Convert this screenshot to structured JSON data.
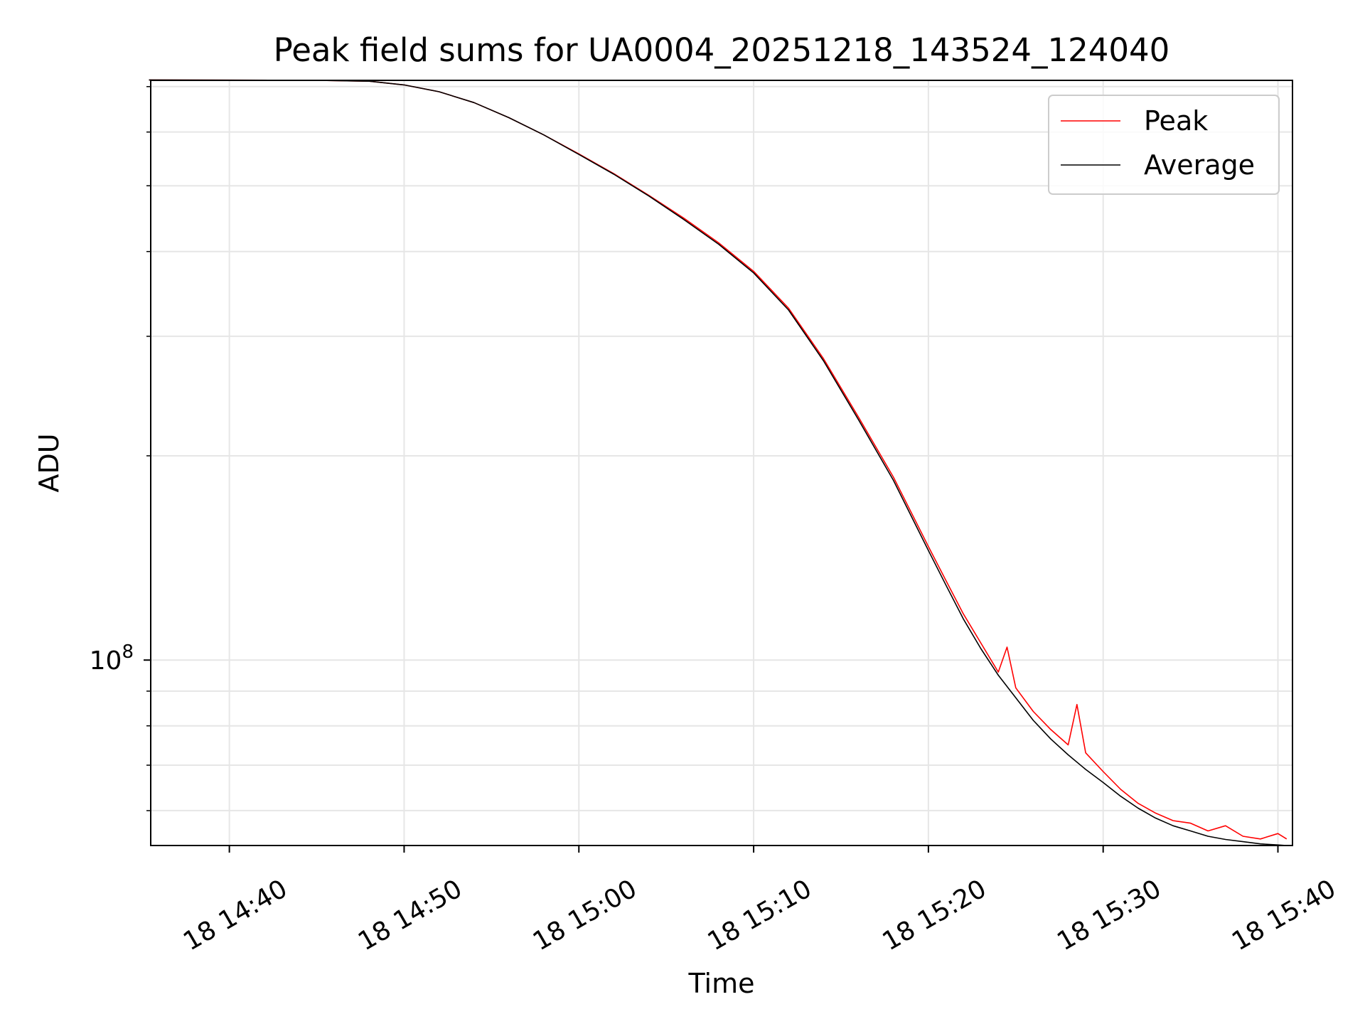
{
  "chart_data": {
    "type": "line",
    "title": "Peak field sums for UA0004_20251218_143524_124040",
    "xlabel": "Time",
    "ylabel": "ADU",
    "x_scale": "time",
    "y_scale": "log",
    "xlim": [
      "2025-12-18 14:35:30",
      "2025-12-18 15:40:50"
    ],
    "ylim": [
      53300000,
      715000000
    ],
    "x_ticks": [
      "18 14:40",
      "18 14:50",
      "18 15:00",
      "18 15:10",
      "18 15:20",
      "18 15:30",
      "18 15:40"
    ],
    "y_tick_label": {
      "base": "10",
      "exponent": "8"
    },
    "grid": true,
    "legend_position": "upper right",
    "series": [
      {
        "name": "Peak",
        "color": "#ff0000",
        "time": [
          "14:35:24",
          "14:45:00",
          "14:48:00",
          "14:50:00",
          "14:52:00",
          "14:54:00",
          "14:56:00",
          "14:58:00",
          "15:00:00",
          "15:02:00",
          "15:04:00",
          "15:06:00",
          "15:08:00",
          "15:10:00",
          "15:12:00",
          "15:14:00",
          "15:16:00",
          "15:18:00",
          "15:20:00",
          "15:21:00",
          "15:22:00",
          "15:23:00",
          "15:24:00",
          "15:24:30",
          "15:25:00",
          "15:26:00",
          "15:27:00",
          "15:28:00",
          "15:28:30",
          "15:29:00",
          "15:30:00",
          "15:31:00",
          "15:32:00",
          "15:33:00",
          "15:34:00",
          "15:35:00",
          "15:36:00",
          "15:37:00",
          "15:38:00",
          "15:39:00",
          "15:40:00",
          "15:40:30"
        ],
        "adu": [
          716000000,
          715000000,
          713000000,
          704000000,
          688000000,
          663000000,
          630000000,
          594000000,
          557000000,
          521000000,
          484000000,
          448000000,
          412000000,
          374000000,
          330000000,
          278000000,
          228000000,
          186000000,
          147000000,
          131000000,
          117000000,
          106000000,
          96000000,
          104500000,
          91000000,
          84000000,
          79000000,
          75000000,
          86000000,
          73000000,
          68500000,
          64500000,
          61500000,
          59500000,
          58000000,
          57500000,
          56000000,
          57000000,
          55000000,
          54500000,
          55500000,
          54500000
        ]
      },
      {
        "name": "Average",
        "color": "#000000",
        "time": [
          "14:35:24",
          "14:45:00",
          "14:48:00",
          "14:50:00",
          "14:52:00",
          "14:54:00",
          "14:56:00",
          "14:58:00",
          "15:00:00",
          "15:02:00",
          "15:04:00",
          "15:06:00",
          "15:08:00",
          "15:10:00",
          "15:12:00",
          "15:14:00",
          "15:16:00",
          "15:18:00",
          "15:20:00",
          "15:21:00",
          "15:22:00",
          "15:23:00",
          "15:24:00",
          "15:25:00",
          "15:26:00",
          "15:27:00",
          "15:28:00",
          "15:29:00",
          "15:30:00",
          "15:31:00",
          "15:32:00",
          "15:33:00",
          "15:34:00",
          "15:35:00",
          "15:36:00",
          "15:37:00",
          "15:38:00",
          "15:39:00",
          "15:40:00",
          "15:40:30"
        ],
        "adu": [
          716000000,
          715000000,
          713000000,
          704000000,
          688000000,
          663000000,
          630000000,
          594000000,
          556000000,
          520000000,
          483000000,
          446000000,
          410000000,
          372000000,
          328000000,
          276000000,
          226000000,
          184000000,
          145000000,
          129000000,
          115000000,
          104000000,
          95000000,
          88000000,
          81500000,
          76500000,
          72500000,
          69000000,
          66000000,
          63000000,
          60500000,
          58500000,
          57000000,
          56000000,
          55000000,
          54400000,
          54000000,
          53600000,
          53400000,
          53300000
        ]
      }
    ]
  }
}
